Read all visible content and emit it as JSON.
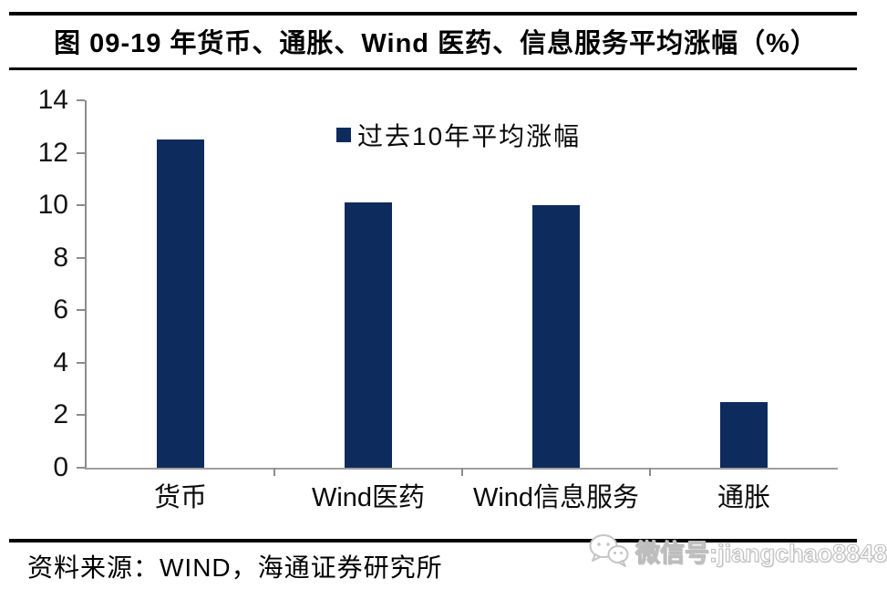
{
  "header": {
    "title": "图 09-19 年货币、通胀、Wind 医药、信息服务平均涨幅（%）"
  },
  "chart_data": {
    "type": "bar",
    "title": "图 09-19 年货币、通胀、Wind 医药、信息服务平均涨幅（%）",
    "legend": [
      "过去10年平均涨幅"
    ],
    "legend_position": "top-center",
    "categories": [
      "货币",
      "Wind医药",
      "Wind信息服务",
      "通胀"
    ],
    "values": [
      12.5,
      10.1,
      10.0,
      2.5
    ],
    "ylim": [
      0,
      14
    ],
    "yticks": [
      0,
      2,
      4,
      6,
      8,
      10,
      12,
      14
    ],
    "grid": false,
    "bar_color": "#0e2b5e",
    "axis_color": "#8c8c8c"
  },
  "footer": {
    "source": "资料来源：WIND，海通证券研究所",
    "watermark": "微信号:jiangchao8848",
    "watermark_icon": "wechat-icon"
  }
}
